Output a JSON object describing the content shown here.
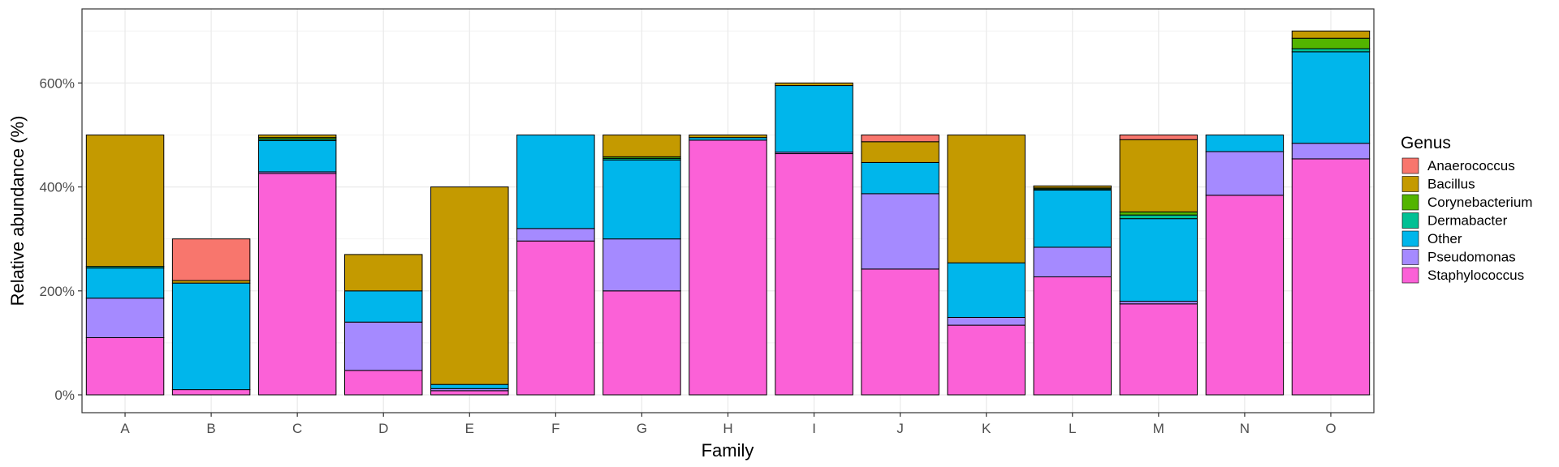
{
  "chart_data": {
    "type": "bar",
    "stacked": true,
    "xlabel": "Family",
    "ylabel": "Relative abundance (%)",
    "ylim": [
      0,
      730
    ],
    "y_ticks": [
      0,
      200,
      400,
      600
    ],
    "y_tick_labels": [
      "0%",
      "200%",
      "400%",
      "600%"
    ],
    "grid": true,
    "legend": {
      "title": "Genus",
      "position": "right",
      "entries": [
        "Anaerococcus",
        "Bacillus",
        "Corynebacterium",
        "Dermabacter",
        "Other",
        "Pseudomonas",
        "Staphylococcus"
      ]
    },
    "colors": {
      "Anaerococcus": "#F8766D",
      "Bacillus": "#C49A00",
      "Corynebacterium": "#53B400",
      "Dermabacter": "#00C094",
      "Other": "#00B6EB",
      "Pseudomonas": "#A58AFF",
      "Staphylococcus": "#FB61D7"
    },
    "categories": [
      "A",
      "B",
      "C",
      "D",
      "E",
      "F",
      "G",
      "H",
      "I",
      "J",
      "K",
      "L",
      "M",
      "N",
      "O"
    ],
    "series": [
      {
        "name": "Anaerococcus",
        "values": [
          0,
          80,
          0,
          0,
          0,
          0,
          0,
          0,
          0,
          13,
          0,
          0,
          9,
          0,
          0
        ]
      },
      {
        "name": "Bacillus",
        "values": [
          253,
          5,
          5,
          70,
          380,
          0,
          42,
          5,
          5,
          40,
          246,
          4,
          139,
          0,
          14
        ]
      },
      {
        "name": "Corynebacterium",
        "values": [
          0,
          0,
          3,
          0,
          0,
          0,
          3,
          0,
          0,
          0,
          0,
          2,
          6,
          0,
          20
        ]
      },
      {
        "name": "Dermabacter",
        "values": [
          3,
          0,
          3,
          0,
          0,
          0,
          3,
          0,
          0,
          0,
          0,
          2,
          7,
          0,
          6
        ]
      },
      {
        "name": "Other",
        "values": [
          58,
          205,
          60,
          60,
          8,
          180,
          152,
          5,
          128,
          60,
          105,
          110,
          159,
          32,
          176
        ]
      },
      {
        "name": "Pseudomonas",
        "values": [
          76,
          0,
          3,
          93,
          4,
          24,
          100,
          0,
          3,
          145,
          15,
          57,
          5,
          84,
          30
        ]
      },
      {
        "name": "Staphylococcus",
        "values": [
          110,
          10,
          426,
          47,
          8,
          296,
          200,
          490,
          464,
          242,
          134,
          227,
          175,
          384,
          454
        ]
      }
    ]
  }
}
